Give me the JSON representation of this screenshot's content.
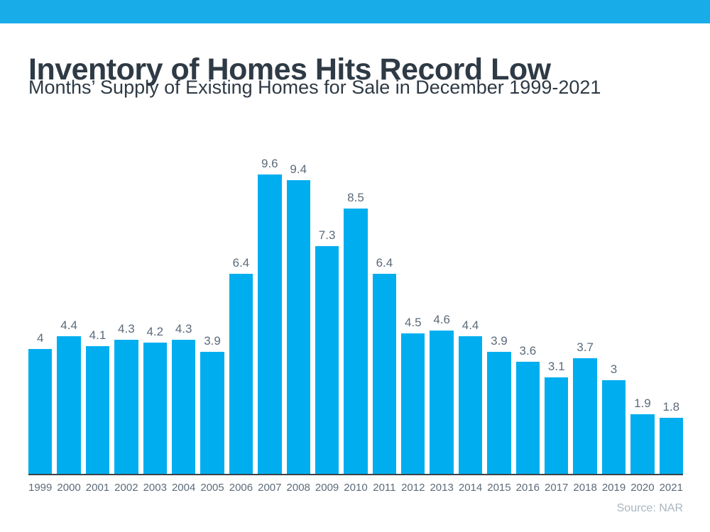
{
  "header": {
    "title": "Inventory of Homes Hits Record Low",
    "subtitle": "Months’ Supply of Existing Homes for Sale in December 1999-2021"
  },
  "chart_data": {
    "type": "bar",
    "title": "Inventory of Homes Hits Record Low",
    "subtitle": "Months’ Supply of Existing Homes for Sale in December 1999-2021",
    "categories": [
      "1999",
      "2000",
      "2001",
      "2002",
      "2003",
      "2004",
      "2005",
      "2006",
      "2007",
      "2008",
      "2009",
      "2010",
      "2011",
      "2012",
      "2013",
      "2014",
      "2015",
      "2016",
      "2017",
      "2018",
      "2019",
      "2020",
      "2021"
    ],
    "values": [
      4,
      4.4,
      4.1,
      4.3,
      4.2,
      4.3,
      3.9,
      6.4,
      9.6,
      9.4,
      7.3,
      8.5,
      6.4,
      4.5,
      4.6,
      4.4,
      3.9,
      3.6,
      3.1,
      3.7,
      3,
      1.9,
      1.8
    ],
    "xlabel": "",
    "ylabel": "",
    "ylim": [
      0,
      10
    ],
    "grid": false,
    "legend": "none",
    "data_labels": true,
    "source": "Source: NAR"
  },
  "colors": {
    "accent_bar": "#18ACE8",
    "bar": "#00AEEF",
    "title_text": "#2E3A45",
    "label_text": "#5C6B7A",
    "axis_line": "#3C4248",
    "source_text": "#A9B6C0"
  }
}
